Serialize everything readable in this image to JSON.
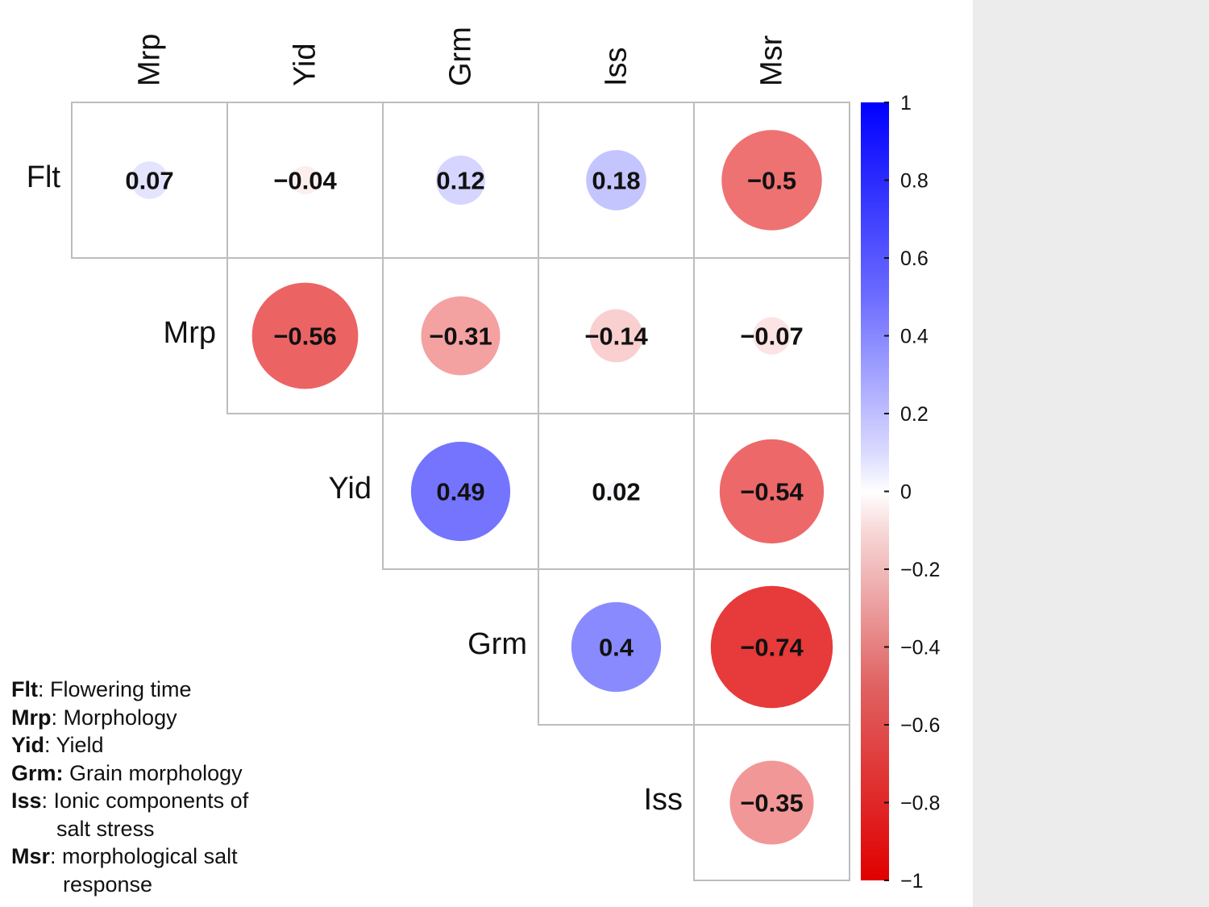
{
  "chart_data": {
    "type": "heatmap",
    "variables": [
      "Flt",
      "Mrp",
      "Yid",
      "Grm",
      "Iss",
      "Msr"
    ],
    "column_labels": [
      "Mrp",
      "Yid",
      "Grm",
      "Iss",
      "Msr"
    ],
    "row_labels": [
      "Flt",
      "Mrp",
      "Yid",
      "Grm",
      "Iss"
    ],
    "cells": [
      {
        "row": "Flt",
        "col": "Mrp",
        "value": 0.07,
        "label": "0.07"
      },
      {
        "row": "Flt",
        "col": "Yid",
        "value": -0.04,
        "label": "−0.04"
      },
      {
        "row": "Flt",
        "col": "Grm",
        "value": 0.12,
        "label": "0.12"
      },
      {
        "row": "Flt",
        "col": "Iss",
        "value": 0.18,
        "label": "0.18"
      },
      {
        "row": "Flt",
        "col": "Msr",
        "value": -0.5,
        "label": "−0.5"
      },
      {
        "row": "Mrp",
        "col": "Yid",
        "value": -0.56,
        "label": "−0.56"
      },
      {
        "row": "Mrp",
        "col": "Grm",
        "value": -0.31,
        "label": "−0.31"
      },
      {
        "row": "Mrp",
        "col": "Iss",
        "value": -0.14,
        "label": "−0.14"
      },
      {
        "row": "Mrp",
        "col": "Msr",
        "value": -0.07,
        "label": "−0.07"
      },
      {
        "row": "Yid",
        "col": "Grm",
        "value": 0.49,
        "label": "0.49"
      },
      {
        "row": "Yid",
        "col": "Iss",
        "value": 0.02,
        "label": "0.02"
      },
      {
        "row": "Yid",
        "col": "Msr",
        "value": -0.54,
        "label": "−0.54"
      },
      {
        "row": "Grm",
        "col": "Iss",
        "value": 0.4,
        "label": "0.4"
      },
      {
        "row": "Grm",
        "col": "Msr",
        "value": -0.74,
        "label": "−0.74"
      },
      {
        "row": "Iss",
        "col": "Msr",
        "value": -0.35,
        "label": "−0.35"
      }
    ],
    "colorbar": {
      "range": [
        -1,
        1
      ],
      "ticks": [
        1,
        0.8,
        0.6,
        0.4,
        0.2,
        0,
        -0.2,
        -0.4,
        -0.6,
        -0.8,
        -1
      ],
      "tick_labels": [
        "1",
        "0.8",
        "0.6",
        "0.4",
        "0.2",
        "0",
        "−0.2",
        "−0.4",
        "−0.6",
        "−0.8",
        "−1"
      ],
      "color_high": "#0000ff",
      "color_mid": "#ffffff",
      "color_low": "#e00000"
    }
  },
  "legend": [
    {
      "abbr": "Flt",
      "sep": ": ",
      "text": "Flowering time",
      "cont": ""
    },
    {
      "abbr": "Mrp",
      "sep": ": ",
      "text": "Morphology",
      "cont": ""
    },
    {
      "abbr": "Yid",
      "sep": ": ",
      "text": "Yield",
      "cont": ""
    },
    {
      "abbr": "Grm:",
      "sep": " ",
      "text": "Grain morphology",
      "cont": ""
    },
    {
      "abbr": "Iss",
      "sep": ": ",
      "text": "Ionic components of",
      "cont": "salt stress"
    },
    {
      "abbr": "Msr",
      "sep": ": ",
      "text": "morphological salt",
      "cont": "response"
    }
  ]
}
